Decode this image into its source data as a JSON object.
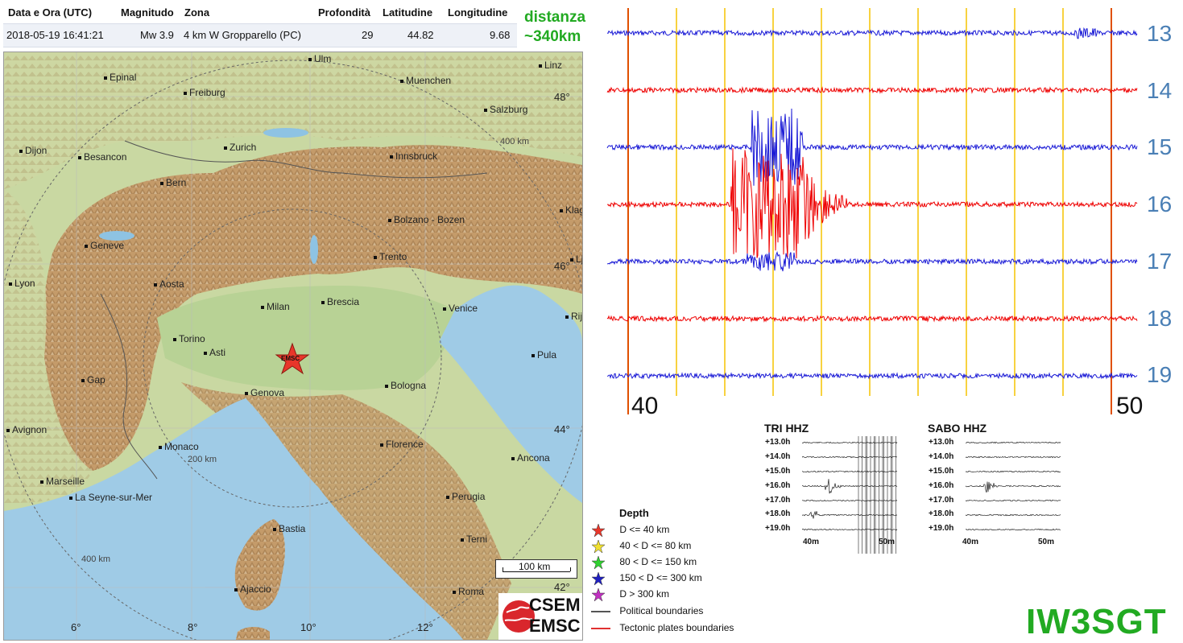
{
  "info": {
    "headers": {
      "time": "Data e Ora (UTC)",
      "mag": "Magnitudo",
      "zone": "Zona",
      "depth": "Profondità",
      "lat": "Latitudine",
      "lon": "Longitudine"
    },
    "row": {
      "time": "2018-05-19 16:41:21",
      "mag": "Mw 3.9",
      "zone": "4 km W Gropparello (PC)",
      "depth": "29",
      "lat": "44.82",
      "lon": "9.68"
    }
  },
  "distance_note": {
    "line1": "distanza",
    "line2": "~340km"
  },
  "map": {
    "cities": [
      {
        "name": "Ulm"
      },
      {
        "name": "Epinal"
      },
      {
        "name": "Freiburg"
      },
      {
        "name": "Muenchen"
      },
      {
        "name": "Linz"
      },
      {
        "name": "Salzburg"
      },
      {
        "name": "Dijon"
      },
      {
        "name": "Besancon"
      },
      {
        "name": "Zurich"
      },
      {
        "name": "Innsbruck"
      },
      {
        "name": "Bern"
      },
      {
        "name": "Klage"
      },
      {
        "name": "Bolzano - Bozen"
      },
      {
        "name": "Geneve"
      },
      {
        "name": "Trento"
      },
      {
        "name": "Lju"
      },
      {
        "name": "Lyon"
      },
      {
        "name": "Aosta"
      },
      {
        "name": "Brescia"
      },
      {
        "name": "Milan"
      },
      {
        "name": "Venice"
      },
      {
        "name": "Rije"
      },
      {
        "name": "Torino"
      },
      {
        "name": "Asti"
      },
      {
        "name": "Pula"
      },
      {
        "name": "Gap"
      },
      {
        "name": "Genova"
      },
      {
        "name": "Bologna"
      },
      {
        "name": "Avignon"
      },
      {
        "name": "Florence"
      },
      {
        "name": "Monaco"
      },
      {
        "name": "Ancona"
      },
      {
        "name": "Marseille"
      },
      {
        "name": "La Seyne-sur-Mer"
      },
      {
        "name": "Perugia"
      },
      {
        "name": "Bastia"
      },
      {
        "name": "Terni"
      },
      {
        "name": "Ajaccio"
      },
      {
        "name": "Roma"
      }
    ],
    "lat_labels": [
      "48°",
      "46°",
      "44°",
      "42°"
    ],
    "lon_labels": [
      "6°",
      "8°",
      "10°",
      "12°"
    ],
    "ring_labels": [
      "200 km",
      "400 km",
      "400 km"
    ],
    "epicenter_label": "EMSC",
    "scale_label": "100 km",
    "logo": {
      "top": "CSEM",
      "bottom": "EMSC"
    },
    "colors": {
      "sea": "#9fcbe6",
      "lowland": "#b9d39c",
      "mountain": "#b58a5a",
      "epicenter": "#e8362a"
    }
  },
  "seismogram": {
    "hours": [
      "13",
      "14",
      "15",
      "16",
      "17",
      "18",
      "19"
    ],
    "x_start_label": "40",
    "x_end_label": "50",
    "trace_colors": [
      "#1a1ad6",
      "#ee0000"
    ],
    "minute_line_color": "#f5c400",
    "edge_line_color": "#e05000"
  },
  "thumbnails": [
    {
      "title": "TRI HHZ",
      "rows": [
        "+13.0h",
        "+14.0h",
        "+15.0h",
        "+16.0h",
        "+17.0h",
        "+18.0h",
        "+19.0h"
      ],
      "x_labels": [
        "40m",
        "50m"
      ]
    },
    {
      "title": "SABO HHZ",
      "rows": [
        "+13.0h",
        "+14.0h",
        "+15.0h",
        "+16.0h",
        "+17.0h",
        "+18.0h",
        "+19.0h"
      ],
      "x_labels": [
        "40m",
        "50m"
      ]
    }
  ],
  "legend": {
    "title": "Depth",
    "items": [
      {
        "label": "D <= 40 km",
        "color": "#e8362a"
      },
      {
        "label": "40 < D <= 80 km",
        "color": "#f0e030"
      },
      {
        "label": "80 < D <= 150 km",
        "color": "#30d030"
      },
      {
        "label": "150 < D <= 300 km",
        "color": "#2020c0"
      },
      {
        "label": "D > 300 km",
        "color": "#c030c0"
      }
    ],
    "lines": [
      {
        "label": "Political boundaries",
        "color": "#555555"
      },
      {
        "label": "Tectonic plates boundaries",
        "color": "#e03030"
      }
    ]
  },
  "callsign": "IW3SGT"
}
